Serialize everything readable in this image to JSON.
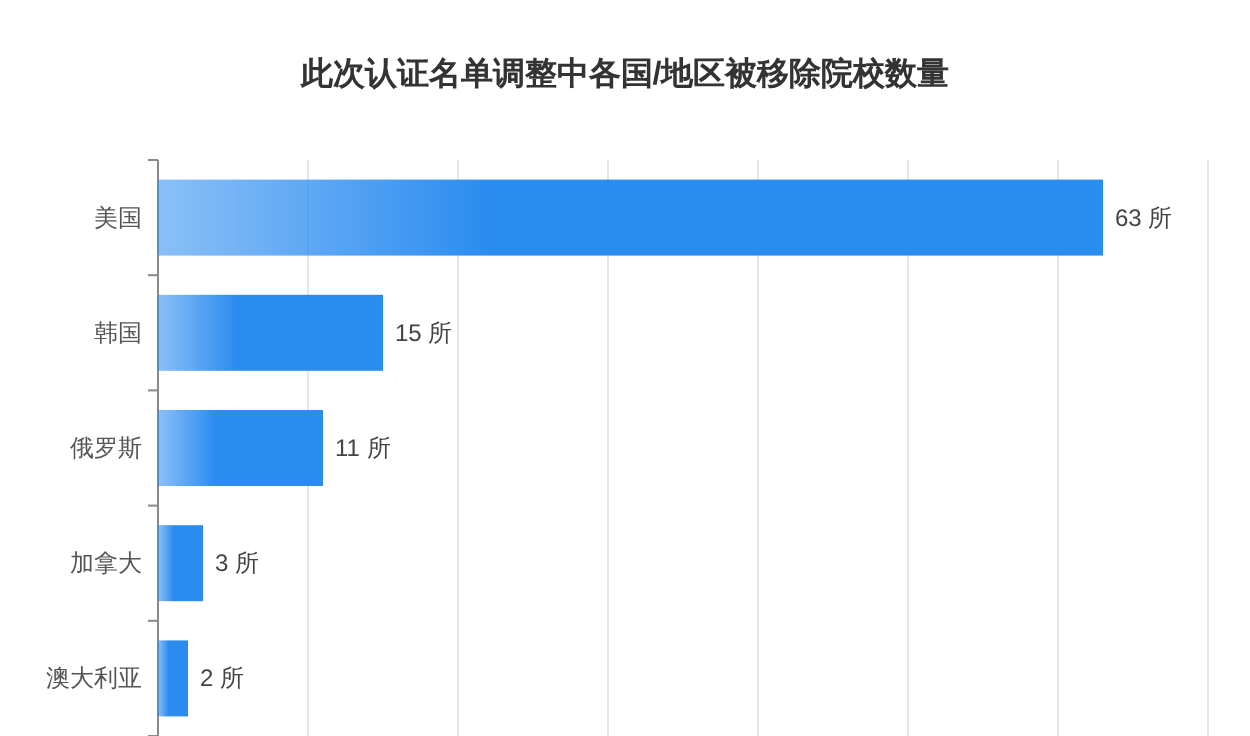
{
  "chart_data": {
    "type": "bar",
    "orientation": "horizontal",
    "title": "此次认证名单调整中各国/地区被移除院校数量",
    "categories": [
      "美国",
      "韩国",
      "俄罗斯",
      "加拿大",
      "澳大利亚"
    ],
    "values": [
      63,
      15,
      11,
      3,
      2
    ],
    "value_labels": [
      "63 所",
      "15 所",
      "11 所",
      "3 所",
      "2 所"
    ],
    "color": "#2b8cf0",
    "xlim": [
      0,
      70
    ],
    "xticks": [
      {
        "value": 0,
        "label": null
      },
      {
        "value": 10,
        "label": null
      },
      {
        "value": 20,
        "label": null
      },
      {
        "value": 30,
        "label": null
      },
      {
        "value": 40,
        "label": null
      },
      {
        "value": 50,
        "label": null
      },
      {
        "value": 60,
        "label": null
      },
      {
        "value": 70,
        "label": null
      }
    ],
    "tick_labels": "y",
    "grid": "x"
  }
}
